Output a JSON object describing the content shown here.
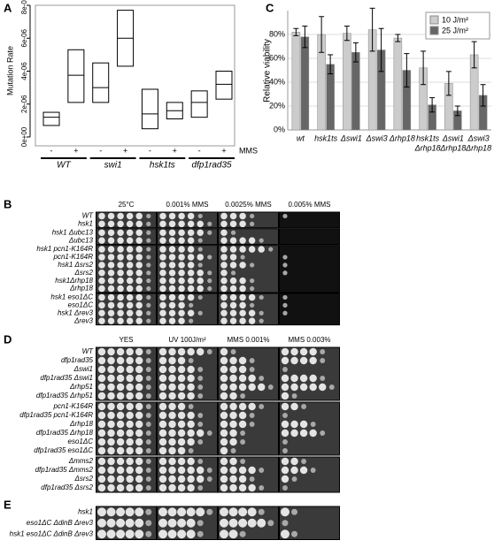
{
  "chart_data": [
    {
      "type": "box",
      "label": "A",
      "ylabel": "Mutation Rate",
      "ylim": [
        0,
        8e-06
      ],
      "yticks": [
        {
          "value": 0,
          "label": "0e+00"
        },
        {
          "value": 2e-06,
          "label": "2e-06"
        },
        {
          "value": 4e-06,
          "label": "4e-06"
        },
        {
          "value": 6e-06,
          "label": "6e-06"
        },
        {
          "value": 8e-06,
          "label": "8e-06"
        }
      ],
      "categories": [
        "-",
        "+",
        "-",
        "+",
        "-",
        "+",
        "-",
        "+"
      ],
      "treatment": "MMS",
      "groups": [
        "WT",
        "swi1",
        "hsk1ts",
        "dfp1rad35"
      ],
      "lower": [
        7e-07,
        2.1e-06,
        2.1e-06,
        4.3e-06,
        5e-07,
        1.1e-06,
        1.2e-06,
        2.3e-06
      ],
      "median": [
        1.2e-06,
        3.75e-06,
        3e-06,
        6e-06,
        1.4e-06,
        1.6e-06,
        2.1e-06,
        3.2e-06
      ],
      "upper": [
        1.5e-06,
        5.3e-06,
        4.5e-06,
        7.7e-06,
        2.9e-06,
        2.1e-06,
        2.8e-06,
        4e-06
      ]
    },
    {
      "type": "bar",
      "label": "C",
      "ylabel": "Relative viability",
      "ylim": [
        0,
        100
      ],
      "yticks": [
        {
          "value": 0,
          "label": "0%"
        },
        {
          "value": 20,
          "label": "20%"
        },
        {
          "value": 40,
          "label": "40%"
        },
        {
          "value": 60,
          "label": "60%"
        },
        {
          "value": 80,
          "label": "80%"
        }
      ],
      "grid": true,
      "legend": "top-right",
      "categories": [
        [
          "wt"
        ],
        [
          "hsk1ts"
        ],
        [
          "Δswi1"
        ],
        [
          "Δswi3"
        ],
        [
          "Δrhp18"
        ],
        [
          "hsk1ts",
          "Δrhp18"
        ],
        [
          "Δswi1",
          "Δrhp18"
        ],
        [
          "Δswi3",
          "Δrhp18"
        ]
      ],
      "series": [
        {
          "name": "10 J/m²",
          "color": "#cccccc",
          "values": [
            82,
            80,
            81,
            84,
            77,
            52,
            39,
            63
          ],
          "errors": [
            3,
            15,
            6,
            18,
            3,
            14,
            10,
            11
          ]
        },
        {
          "name": "25 J/m²",
          "color": "#666666",
          "values": [
            78,
            55,
            65,
            67,
            50,
            21,
            16,
            29
          ],
          "errors": [
            9,
            8,
            8,
            18,
            14,
            6,
            4,
            9
          ]
        }
      ]
    }
  ],
  "spot_panels": [
    {
      "label": "B",
      "columns": [
        "25°C",
        "0.001% MMS",
        "0.0025% MMS",
        "0.005% MMS"
      ],
      "row_groups": [
        [
          "WT",
          "hsk1"
        ],
        [
          "hsk1 Δubc13",
          "Δubc13"
        ],
        [
          "hsk1 pcn1-K164R",
          "pcn1-K164R",
          "hsk1 Δsrs2",
          "Δsrs2",
          "hsk1Δrhp18",
          "Δrhp18"
        ],
        [
          "hsk1 eso1ΔC",
          "eso1ΔC",
          "hsk1 Δrev3",
          "Δrev3"
        ]
      ]
    },
    {
      "label": "D",
      "columns": [
        "YES",
        "UV 100J/m²",
        "MMS 0.001%",
        "MMS 0.003%"
      ],
      "row_groups": [
        [
          "WT",
          "dfp1rad35",
          "Δswi1",
          "dfp1rad35 Δswi1",
          "Δrhp51",
          "dfp1rad35 Δrhp51"
        ],
        [
          "pcn1-K164R",
          "dfp1rad35 pcn1-K164R",
          "Δrhp18",
          "dfp1rad35 Δrhp18",
          "eso1ΔC",
          "dfp1rad35 eso1ΔC"
        ],
        [
          "Δmms2",
          "dfp1rad35 Δmms2",
          "Δsrs2",
          "dfp1rad35 Δsrs2"
        ]
      ]
    },
    {
      "label": "E",
      "columns": [],
      "row_groups": [
        [
          "hsk1",
          "eso1ΔC ΔdinB Δrev3",
          "hsk1 eso1ΔC ΔdinB Δrev3"
        ]
      ]
    }
  ]
}
